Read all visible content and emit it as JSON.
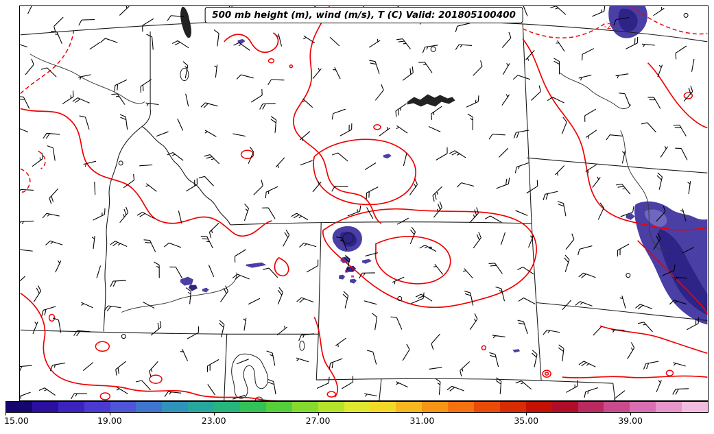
{
  "title": {
    "text": "500 mb height (m), wind (m/s), T (C) Valid: 201805100400"
  },
  "map": {
    "contour_label": "-2",
    "colors": {
      "contour": "#f00000",
      "state_border": "#1a1a1a",
      "barb": "#000000",
      "shade_dark": "#2e2387",
      "shade_mid": "#4a3fa5",
      "shade_light": "#6f66bd",
      "shade_magenta": "#c23ec2",
      "background": "#ffffff"
    }
  },
  "colorbar": {
    "min": 15,
    "max": 42,
    "ticks": [
      {
        "value": 15,
        "label": "15.00"
      },
      {
        "value": 19,
        "label": "19.00"
      },
      {
        "value": 23,
        "label": "23.00"
      },
      {
        "value": 27,
        "label": "27.00"
      },
      {
        "value": 31,
        "label": "31.00"
      },
      {
        "value": 35,
        "label": "35.00"
      },
      {
        "value": 39,
        "label": "39.00"
      }
    ],
    "colors": [
      "#14066e",
      "#2b0fa0",
      "#3c23c0",
      "#4b3ad2",
      "#4f55d8",
      "#3f74cf",
      "#2f93bb",
      "#27a89f",
      "#25b57d",
      "#33c257",
      "#55cf3a",
      "#85da2e",
      "#b4e32a",
      "#dfe72e",
      "#f2d926",
      "#f6b81e",
      "#f79615",
      "#f5720e",
      "#ea4c08",
      "#d92b04",
      "#c41103",
      "#b00d28",
      "#ba2a60",
      "#c94b8e",
      "#d96fb2",
      "#e795cb",
      "#f2bce0"
    ]
  }
}
